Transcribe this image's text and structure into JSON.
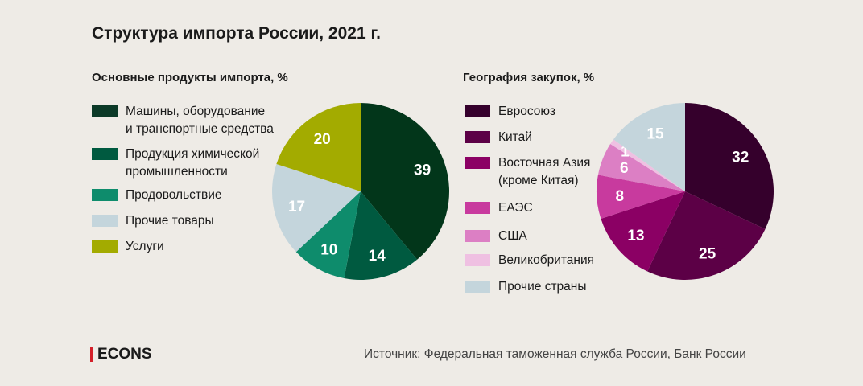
{
  "title": "Структура импорта России, 2021 г.",
  "source": "Источник: Федеральная таможенная служба России, Банк России",
  "logo": "ECONS",
  "chart_data": [
    {
      "type": "pie",
      "title": "Основные продукты импорта, %",
      "slices": [
        {
          "label": "Машины, оборудование\nи транспортные средства",
          "value": 39,
          "color": "#02361a",
          "legend_color": "#0c3a28"
        },
        {
          "label": "Продукция химической\nпромышленности",
          "value": 14,
          "color": "#005a40",
          "legend_color": "#005a40"
        },
        {
          "label": "Продовольствие",
          "value": 10,
          "color": "#0e8c6c",
          "legend_color": "#0e8c6c"
        },
        {
          "label": "Прочие товары",
          "value": 17,
          "color": "#c4d5dc",
          "legend_color": "#c4d5dc"
        },
        {
          "label": "Услуги",
          "value": 20,
          "color": "#a3ab00",
          "legend_color": "#a3ab00"
        }
      ]
    },
    {
      "type": "pie",
      "title": "География закупок, %",
      "slices": [
        {
          "label": "Евросоюз",
          "value": 32,
          "color": "#35002c",
          "legend_color": "#35002c"
        },
        {
          "label": "Китай",
          "value": 25,
          "color": "#5c0046",
          "legend_color": "#5c0046"
        },
        {
          "label": "Восточная Азия\n(кроме Китая)",
          "value": 13,
          "color": "#8b0064",
          "legend_color": "#8b0064"
        },
        {
          "label": "ЕАЭС",
          "value": 8,
          "color": "#c83a9e",
          "legend_color": "#c83a9e"
        },
        {
          "label": "США",
          "value": 6,
          "color": "#dc7fc4",
          "legend_color": "#dc7fc4"
        },
        {
          "label": "Великобритания",
          "value": 1,
          "color": "#efc0e2",
          "legend_color": "#efc0e2"
        },
        {
          "label": "Прочие страны",
          "value": 15,
          "color": "#c4d5dc",
          "legend_color": "#c4d5dc"
        }
      ]
    }
  ]
}
